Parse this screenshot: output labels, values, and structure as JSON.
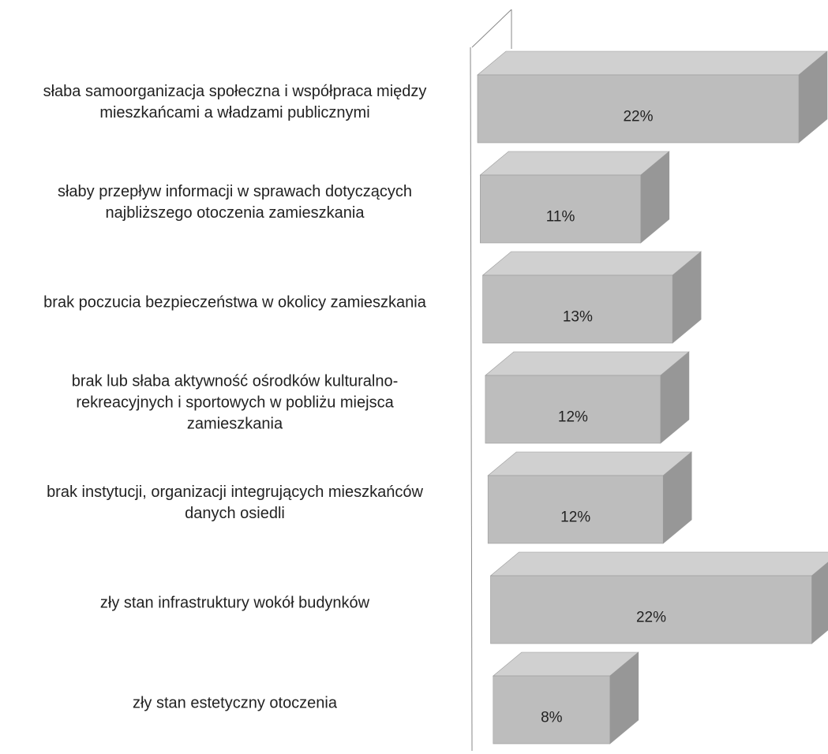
{
  "chart_data": {
    "type": "bar3d",
    "orientation": "horizontal",
    "categories": [
      "słaba samoorganizacja społeczna i współpraca między\nmieszkańcami a władzami publicznymi",
      "słaby przepływ informacji w sprawach dotyczących\nnajbliższego otoczenia zamieszkania",
      "brak poczucia bezpieczeństwa w okolicy zamieszkania",
      "brak lub słaba aktywność ośrodków kulturalno-\nrekreacyjnych i sportowych w pobliżu miejsca\nzamieszkania",
      "brak instytucji, organizacji integrujących mieszkańców\ndanych osiedli",
      "zły stan infrastruktury wokół budynków",
      "zły stan estetyczny otoczenia"
    ],
    "values": [
      22,
      11,
      13,
      12,
      12,
      22,
      8
    ],
    "value_labels": [
      "22%",
      "11%",
      "13%",
      "12%",
      "12%",
      "22%",
      "8%"
    ],
    "color": "#bdbdbd"
  }
}
